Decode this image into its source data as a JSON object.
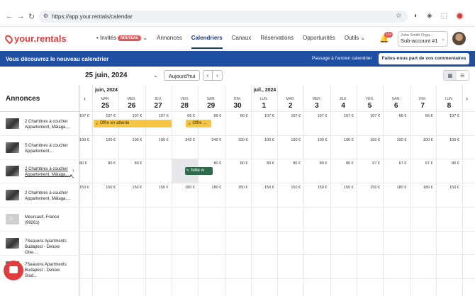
{
  "browser": {
    "url": "https://app.your.rentals/calendar",
    "back": "←",
    "forward": "→",
    "reload": "↻"
  },
  "nav": {
    "logo": "your.rentals",
    "items": [
      {
        "label": "Invités",
        "badge": "NOUVEAU",
        "dropdown": true
      },
      {
        "label": "Annonces"
      },
      {
        "label": "Calendriers",
        "active": true
      },
      {
        "label": "Canaux"
      },
      {
        "label": "Réservations"
      },
      {
        "label": "Opportunités"
      },
      {
        "label": "Outils",
        "dropdown": true
      }
    ],
    "notification_count": "10+",
    "account_name": "John Smith Orga...",
    "account_sub": "Sub-account #1"
  },
  "banner": {
    "message": "Vous découvrez le nouveau calendrier",
    "old_link": "Passage à l'ancien calendrier",
    "feedback_button": "Faites-nous part de vos commentaires"
  },
  "toolbar": {
    "date": "25 juin, 2024",
    "today_label": "Aujourd'hui",
    "prev": "‹",
    "next": "›"
  },
  "sidebar": {
    "title": "Annonces",
    "listings": [
      {
        "line1": "2 Chambres à coucher",
        "line2": "Appartement, Málaga,...",
        "thumb": "photo"
      },
      {
        "line1": "5 Chambres à coucher",
        "line2": "Appartement,...",
        "thumb": "photo"
      },
      {
        "line1": "2 Chambres à coucher",
        "line2": "Appartement, Málaga,...",
        "thumb": "photo",
        "hover": true
      },
      {
        "line1": "2 Chambres à coucher",
        "line2": "Appartement, Málaga,...",
        "thumb": "photo"
      },
      {
        "line1": "Meursault, France",
        "line2": "(99261)",
        "thumb": "home"
      },
      {
        "line1": "7Seasons Apartments",
        "line2": "Budapest - Deluxe One-...",
        "thumb": "photo"
      },
      {
        "line1": "7Seasons Apartments",
        "line2": "Budapest - Deluxe Stud...",
        "thumb": "photo"
      }
    ]
  },
  "calendar": {
    "months": [
      {
        "label": "juin, 2024"
      },
      {
        "label": "juil., 2024"
      }
    ],
    "days": [
      {
        "dn": "MAR.",
        "num": "25"
      },
      {
        "dn": "MER.",
        "num": "26"
      },
      {
        "dn": "JEU.",
        "num": "27"
      },
      {
        "dn": "VEN.",
        "num": "28"
      },
      {
        "dn": "SAM.",
        "num": "29"
      },
      {
        "dn": "DIM.",
        "num": "30"
      },
      {
        "dn": "LUN.",
        "num": "1"
      },
      {
        "dn": "MAR.",
        "num": "2"
      },
      {
        "dn": "MER.",
        "num": "3"
      },
      {
        "dn": "JEU.",
        "num": "4"
      },
      {
        "dn": "VEN.",
        "num": "5"
      },
      {
        "dn": "SAM.",
        "num": "6"
      },
      {
        "dn": "DIM.",
        "num": "7"
      },
      {
        "dn": "LUN.",
        "num": "8"
      }
    ],
    "rows": [
      {
        "partial": "107 €",
        "prices": [
          "107 €",
          "107 €",
          "107 €",
          "66 €",
          "66 €",
          "66 €",
          "107 €",
          "107 €",
          "107 €",
          "107 €",
          "107 €",
          "66 €",
          "66 €",
          "107 €"
        ]
      },
      {
        "partial": "100 €",
        "prices": [
          "100 €",
          "100 €",
          "100 €",
          "342 €",
          "342 €",
          "100 €",
          "100 €",
          "100 €",
          "100 €",
          "100 €",
          "100 €",
          "100 €",
          "100 €",
          "100 €"
        ]
      },
      {
        "partial": "80 €",
        "prices": [
          "80 €",
          "80 €",
          "",
          "",
          "80 €",
          "80 €",
          "80 €",
          "80 €",
          "80 €",
          "80 €",
          "67 €",
          "67 €",
          "67 €",
          "80 €"
        ]
      },
      {
        "partial": "150 €",
        "prices": [
          "150 €",
          "150 €",
          "150 €",
          "180 €",
          "180 €",
          "150 €",
          "150 €",
          "150 €",
          "150 €",
          "150 €",
          "150 €",
          "180 €",
          "180 €",
          "150 €"
        ]
      }
    ],
    "reservations": [
      {
        "label": "Offre en attente",
        "type": "pending"
      },
      {
        "label": "Offre ...",
        "type": "pending"
      },
      {
        "label": "fellie w",
        "type": "green"
      }
    ]
  },
  "colors": {
    "brand": "#e03e3e",
    "banner": "#1f4fa3",
    "pending": "#f6c544",
    "confirmed": "#2e6b4b",
    "active_nav": "#1d3a6e"
  }
}
